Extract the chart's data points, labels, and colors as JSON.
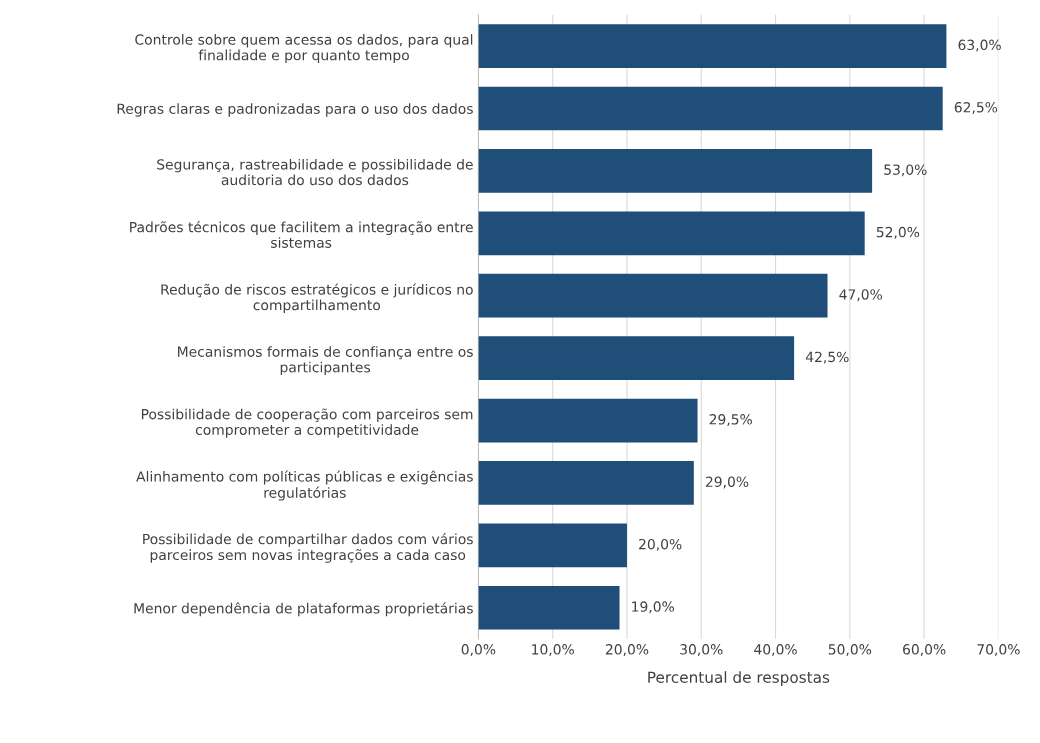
{
  "chart_data": {
    "type": "bar",
    "orientation": "horizontal",
    "xlabel": "Percentual de respostas",
    "categories": [
      "Controle sobre quem acessa os dados, para qual\nfinalidade e por quanto tempo",
      "Regras claras e padronizadas para o uso dos dados",
      "Segurança, rastreabilidade e possibilidade de\nauditoria do uso dos dados",
      "Padrões técnicos que facilitem a integração entre\nsistemas",
      "Redução de riscos estratégicos e jurídicos no\ncompartilhamento",
      "Mecanismos formais de confiança entre os\nparticipantes",
      "Possibilidade de cooperação com parceiros sem\ncomprometer a competitividade",
      "Alinhamento com políticas públicas e exigências\nregulatórias",
      "Possibilidade de compartilhar dados com vários\nparceiros sem novas integrações a cada caso",
      "Menor dependência de plataformas proprietárias"
    ],
    "values": [
      63.0,
      62.5,
      53.0,
      52.0,
      47.0,
      42.5,
      29.5,
      29.0,
      20.0,
      19.0
    ],
    "value_labels": [
      "63,0%",
      "62,5%",
      "53,0%",
      "52,0%",
      "47,0%",
      "42,5%",
      "29,5%",
      "29,0%",
      "20,0%",
      "19,0%"
    ],
    "color": "#1f4e79",
    "xlim": [
      0,
      70
    ],
    "xticks": [
      {
        "value": 0,
        "label": "0,0%"
      },
      {
        "value": 10,
        "label": "10,0%"
      },
      {
        "value": 20,
        "label": "20,0%"
      },
      {
        "value": 30,
        "label": "30,0%"
      },
      {
        "value": 40,
        "label": "40,0%"
      },
      {
        "value": 50,
        "label": "50,0%"
      },
      {
        "value": 60,
        "label": "60,0%"
      },
      {
        "value": 70,
        "label": "70,0%"
      }
    ],
    "grid": "x",
    "legend": false
  }
}
